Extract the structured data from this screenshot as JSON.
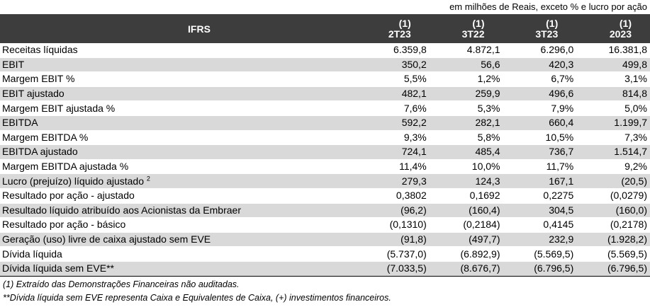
{
  "units_note": "em milhões de Reais, exceto % e lucro por ação",
  "header": {
    "label": "IFRS",
    "periods": [
      {
        "note": "(1)",
        "label": "2T23"
      },
      {
        "note": "(1)",
        "label": "3T22"
      },
      {
        "note": "(1)",
        "label": "3T23"
      },
      {
        "note": "(1)",
        "label": "2023"
      }
    ]
  },
  "rows": [
    {
      "label": "Receitas líquidas",
      "sup": "",
      "values": [
        "6.359,8",
        "4.872,1",
        "6.296,0",
        "16.381,8"
      ]
    },
    {
      "label": "EBIT",
      "sup": "",
      "values": [
        "350,2",
        "56,6",
        "420,3",
        "499,8"
      ]
    },
    {
      "label": "Margem EBIT %",
      "sup": "",
      "values": [
        "5,5%",
        "1,2%",
        "6,7%",
        "3,1%"
      ]
    },
    {
      "label": "EBIT ajustado",
      "sup": "",
      "values": [
        "482,1",
        "259,9",
        "496,6",
        "814,8"
      ]
    },
    {
      "label": "Margem EBIT ajustada %",
      "sup": "",
      "values": [
        "7,6%",
        "5,3%",
        "7,9%",
        "5,0%"
      ]
    },
    {
      "label": "EBITDA",
      "sup": "",
      "values": [
        "592,2",
        "282,1",
        "660,4",
        "1.199,7"
      ]
    },
    {
      "label": "Margem EBITDA %",
      "sup": "",
      "values": [
        "9,3%",
        "5,8%",
        "10,5%",
        "7,3%"
      ]
    },
    {
      "label": "EBITDA ajustado",
      "sup": "",
      "values": [
        "724,1",
        "485,4",
        "736,7",
        "1.514,7"
      ]
    },
    {
      "label": "Margem EBITDA ajustada %",
      "sup": "",
      "values": [
        "11,4%",
        "10,0%",
        "11,7%",
        "9,2%"
      ]
    },
    {
      "label": "Lucro (prejuízo) líquido ajustado",
      "sup": "2",
      "values": [
        "279,3",
        "124,3",
        "167,1",
        "(20,5)"
      ]
    },
    {
      "label": "Resultado por ação - ajustado",
      "sup": "",
      "values": [
        "0,3802",
        "0,1692",
        "0,2275",
        "(0,0279)"
      ]
    },
    {
      "label": "Resultado líquido atribuído aos Acionistas da Embraer",
      "sup": "",
      "values": [
        "(96,2)",
        "(160,4)",
        "304,5",
        "(160,0)"
      ]
    },
    {
      "label": "Resultado por ação - básico",
      "sup": "",
      "values": [
        "(0,1310)",
        "(0,2184)",
        "0,4145",
        "(0,2178)"
      ]
    },
    {
      "label": "Geração (uso) livre de caixa ajustado sem EVE",
      "sup": "",
      "values": [
        "(91,8)",
        "(497,7)",
        "232,9",
        "(1.928,2)"
      ]
    },
    {
      "label": "Dívida líquida",
      "sup": "",
      "values": [
        "(5.737,0)",
        "(6.892,9)",
        "(5.569,5)",
        "(5.569,5)"
      ]
    },
    {
      "label": "Dívida líquida sem EVE**",
      "sup": "",
      "values": [
        "(7.033,5)",
        "(8.676,7)",
        "(6.796,5)",
        "(6.796,5)"
      ]
    }
  ],
  "footnotes": [
    "(1) Extraído das Demonstrações Financeiras não auditadas.",
    "**Dívida líquida sem EVE representa Caixa e Equivalentes de Caixa, (+) investimentos financeiros."
  ]
}
